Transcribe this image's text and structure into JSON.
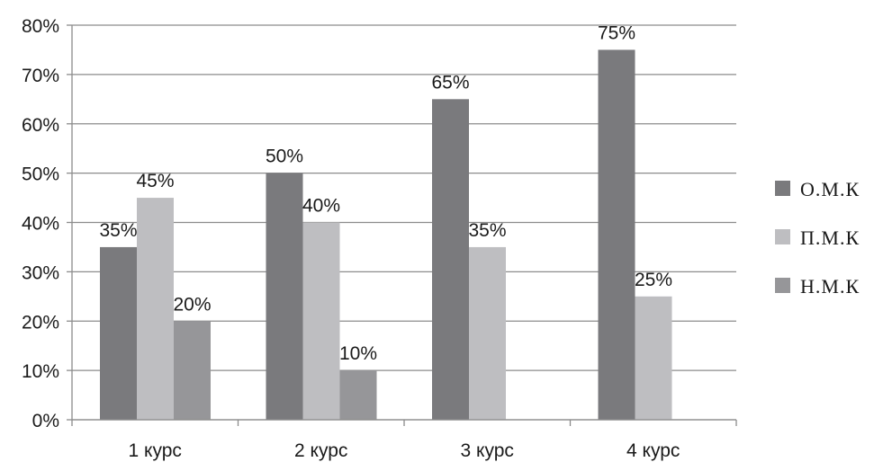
{
  "chart_data": {
    "type": "bar",
    "categories": [
      "1 курс",
      "2 курс",
      "3 курс",
      "4 курс"
    ],
    "series": [
      {
        "name": "О.М.К",
        "values": [
          35,
          50,
          65,
          75
        ],
        "labels": [
          "35%",
          "50%",
          "65%",
          "75%"
        ],
        "color": "#7a7a7d"
      },
      {
        "name": "П.М.К",
        "values": [
          45,
          40,
          35,
          25
        ],
        "labels": [
          "45%",
          "40%",
          "35%",
          "25%"
        ],
        "color": "#bebec1"
      },
      {
        "name": "Н.М.К",
        "values": [
          20,
          10,
          null,
          null
        ],
        "labels": [
          "20%",
          "10%",
          "",
          ""
        ],
        "color": "#969699"
      }
    ],
    "y_ticks": [
      "0%",
      "10%",
      "20%",
      "30%",
      "40%",
      "50%",
      "60%",
      "70%",
      "80%"
    ],
    "ylim": [
      0,
      80
    ],
    "grid": true,
    "legend_position": "right",
    "title": "",
    "xlabel": "",
    "ylabel": ""
  }
}
